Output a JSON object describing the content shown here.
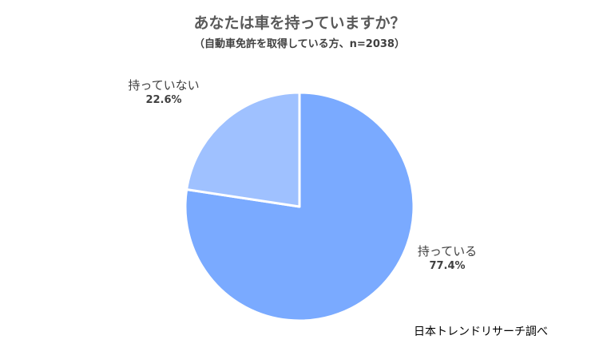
{
  "chart_data": {
    "type": "pie",
    "title": "あなたは車を持っていますか？",
    "subtitle": "（自動車免許を取得している方、n=2038）",
    "slices": [
      {
        "label": "持っている",
        "value": 77.4,
        "display": "77.4%",
        "color": "#7aaaff"
      },
      {
        "label": "持っていない",
        "value": 22.6,
        "display": "22.6%",
        "color": "#9fc1ff"
      }
    ],
    "start_angle_deg": 0,
    "direction": "clockwise",
    "slice_border_color": "#ffffff"
  },
  "source": "日本トレンドリサーチ調べ"
}
